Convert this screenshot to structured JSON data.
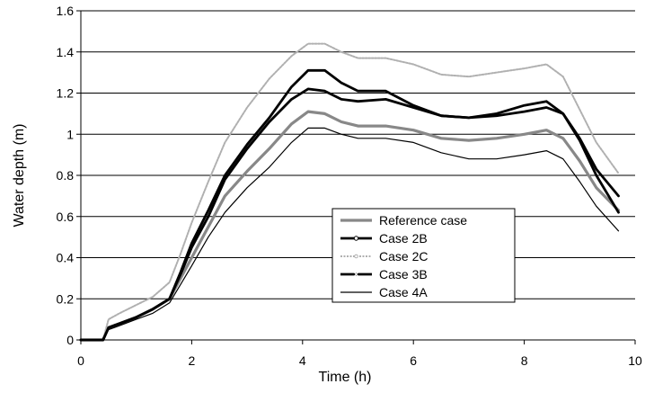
{
  "chart_data": {
    "type": "line",
    "xlabel": "Time (h)",
    "ylabel": "Water depth (m)",
    "xlim": [
      0,
      10
    ],
    "ylim": [
      0,
      1.6
    ],
    "xticks": [
      0,
      2,
      4,
      6,
      8,
      10
    ],
    "yticks": [
      0,
      0.2,
      0.4,
      0.6,
      0.8,
      1,
      1.2,
      1.4,
      1.6
    ],
    "grid": "horizontal",
    "legend_position": "inside-center-right",
    "series": [
      {
        "name": "Reference case",
        "color": "#888888",
        "style": "thick-solid",
        "x": [
          0,
          0.4,
          0.5,
          0.7,
          1.0,
          1.3,
          1.6,
          1.8,
          2.0,
          2.3,
          2.6,
          3.0,
          3.4,
          3.8,
          4.1,
          4.4,
          4.7,
          5.0,
          5.5,
          6.0,
          6.5,
          7.0,
          7.5,
          8.0,
          8.4,
          8.7,
          9.0,
          9.3,
          9.7
        ],
        "y": [
          0,
          0,
          0.06,
          0.08,
          0.11,
          0.15,
          0.2,
          0.3,
          0.4,
          0.55,
          0.7,
          0.82,
          0.93,
          1.05,
          1.11,
          1.1,
          1.06,
          1.04,
          1.04,
          1.02,
          0.98,
          0.97,
          0.98,
          1.0,
          1.02,
          0.98,
          0.87,
          0.74,
          0.63
        ]
      },
      {
        "name": "Case 2B",
        "color": "#000000",
        "style": "thick-marker",
        "marker": "circle",
        "x": [
          0,
          0.4,
          0.5,
          0.7,
          1.0,
          1.3,
          1.6,
          1.8,
          2.0,
          2.3,
          2.6,
          3.0,
          3.4,
          3.8,
          4.1,
          4.4,
          4.7,
          5.0,
          5.5,
          6.0,
          6.5,
          7.0,
          7.5,
          8.0,
          8.4,
          8.7,
          9.0,
          9.3,
          9.7
        ],
        "y": [
          0,
          0,
          0.06,
          0.08,
          0.11,
          0.15,
          0.2,
          0.32,
          0.45,
          0.6,
          0.78,
          0.93,
          1.06,
          1.17,
          1.22,
          1.21,
          1.17,
          1.16,
          1.17,
          1.13,
          1.09,
          1.08,
          1.09,
          1.11,
          1.13,
          1.1,
          0.98,
          0.83,
          0.7
        ]
      },
      {
        "name": "Case 2C",
        "color": "#b0b0b0",
        "style": "dotted-marker",
        "marker": "small-circle",
        "x": [
          0,
          0.4,
          0.5,
          0.7,
          1.0,
          1.3,
          1.6,
          1.8,
          2.0,
          2.3,
          2.6,
          3.0,
          3.4,
          3.8,
          4.1,
          4.4,
          4.7,
          5.0,
          5.5,
          6.0,
          6.5,
          7.0,
          7.5,
          8.0,
          8.4,
          8.7,
          9.0,
          9.3,
          9.7
        ],
        "y": [
          0,
          0,
          0.1,
          0.13,
          0.17,
          0.21,
          0.28,
          0.42,
          0.57,
          0.77,
          0.96,
          1.13,
          1.27,
          1.38,
          1.44,
          1.44,
          1.4,
          1.37,
          1.37,
          1.34,
          1.29,
          1.28,
          1.3,
          1.32,
          1.34,
          1.28,
          1.12,
          0.96,
          0.81
        ]
      },
      {
        "name": "Case 3B",
        "color": "#000000",
        "style": "thick-marker",
        "marker": "x",
        "x": [
          0,
          0.4,
          0.5,
          0.7,
          1.0,
          1.3,
          1.6,
          1.8,
          2.0,
          2.3,
          2.6,
          3.0,
          3.4,
          3.8,
          4.1,
          4.4,
          4.7,
          5.0,
          5.5,
          6.0,
          6.5,
          7.0,
          7.5,
          8.0,
          8.4,
          8.7,
          9.0,
          9.3,
          9.7
        ],
        "y": [
          0,
          0,
          0.06,
          0.08,
          0.11,
          0.15,
          0.2,
          0.33,
          0.47,
          0.63,
          0.8,
          0.95,
          1.08,
          1.23,
          1.31,
          1.31,
          1.25,
          1.21,
          1.21,
          1.14,
          1.09,
          1.08,
          1.1,
          1.14,
          1.16,
          1.1,
          0.97,
          0.8,
          0.62
        ]
      },
      {
        "name": "Case 4A",
        "color": "#000000",
        "style": "thin-solid",
        "x": [
          0,
          0.4,
          0.5,
          0.7,
          1.0,
          1.3,
          1.6,
          1.8,
          2.0,
          2.3,
          2.6,
          3.0,
          3.4,
          3.8,
          4.1,
          4.4,
          4.7,
          5.0,
          5.5,
          6.0,
          6.5,
          7.0,
          7.5,
          8.0,
          8.4,
          8.7,
          9.0,
          9.3,
          9.7
        ],
        "y": [
          0,
          0,
          0.05,
          0.07,
          0.1,
          0.13,
          0.18,
          0.27,
          0.36,
          0.5,
          0.62,
          0.74,
          0.84,
          0.96,
          1.03,
          1.03,
          1.0,
          0.98,
          0.98,
          0.96,
          0.91,
          0.88,
          0.88,
          0.9,
          0.92,
          0.88,
          0.77,
          0.65,
          0.53
        ]
      }
    ]
  }
}
